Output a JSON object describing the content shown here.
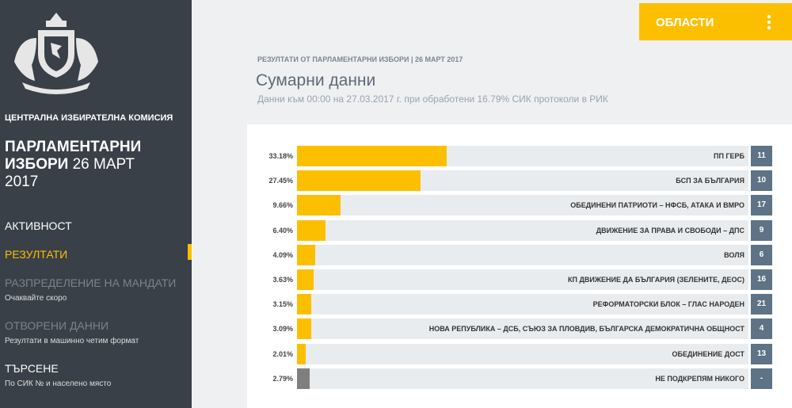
{
  "sidebar": {
    "org": "ЦЕНТРАЛНА ИЗБИРАТЕЛНА КОМИСИЯ",
    "title_bold": "ПАРЛАМЕНТАРНИ ИЗБОРИ",
    "title_rest": "26 МАРТ 2017",
    "nav": [
      {
        "label": "АКТИВНОСТ"
      },
      {
        "label": "РЕЗУЛТАТИ"
      },
      {
        "label": "РАЗПРЕДЕЛЕНИЕ НА МАНДАТИ",
        "sub": "Очаквайте скоро"
      },
      {
        "label": "ОТВОРЕНИ ДАННИ",
        "sub": "Резултати в машинно четим формат"
      },
      {
        "label": "ТЪРСЕНЕ",
        "sub": "По СИК № и населено място"
      }
    ]
  },
  "header": {
    "button": "ОБЛАСТИ",
    "breadcrumb": "РЕЗУЛТАТИ ОТ ПАРЛАМЕНТАРНИ ИЗБОРИ | 26 МАРТ 2017",
    "title": "Сумарни данни",
    "subtitle": "Данни към 00:00 на 27.03.2017 г. при обработени 16.79% СИК протоколи в РИК"
  },
  "chart_data": {
    "type": "bar",
    "orientation": "horizontal",
    "categories": [
      "ПП ГЕРБ",
      "БСП ЗА БЪЛГАРИЯ",
      "ОБЕДИНЕНИ ПАТРИОТИ – НФСБ, АТАКА И ВМРО",
      "ДВИЖЕНИЕ ЗА ПРАВА И СВОБОДИ – ДПС",
      "ВОЛЯ",
      "КП ДВИЖЕНИЕ ДА БЪЛГАРИЯ (ЗЕЛЕНИТЕ, ДЕОС)",
      "РЕФОРМАТОРСКИ БЛОК – ГЛАС НАРОДЕН",
      "НОВА РЕПУБЛИКА – ДСБ, СЪЮЗ ЗА ПЛОВДИВ, БЪЛГАРСКА ДЕМОКРАТИЧНА ОБЩНОСТ",
      "ОБЕДИНЕНИЕ ДОСТ",
      "НЕ ПОДКРЕПЯМ НИКОГО"
    ],
    "values": [
      33.18,
      27.45,
      9.66,
      6.4,
      4.09,
      3.63,
      3.15,
      3.09,
      2.01,
      2.79
    ],
    "value_labels": [
      "33.18%",
      "27.45%",
      "9.66%",
      "6.40%",
      "4.09%",
      "3.63%",
      "3.15%",
      "3.09%",
      "2.01%",
      "2.79%"
    ],
    "ballot_numbers": [
      "11",
      "10",
      "17",
      "9",
      "6",
      "16",
      "21",
      "4",
      "13",
      "-"
    ],
    "colors": [
      "#fcbf00",
      "#fcbf00",
      "#fcbf00",
      "#fcbf00",
      "#fcbf00",
      "#fcbf00",
      "#fcbf00",
      "#fcbf00",
      "#fcbf00",
      "#7f7f7f"
    ],
    "xlim": [
      0,
      100
    ]
  }
}
